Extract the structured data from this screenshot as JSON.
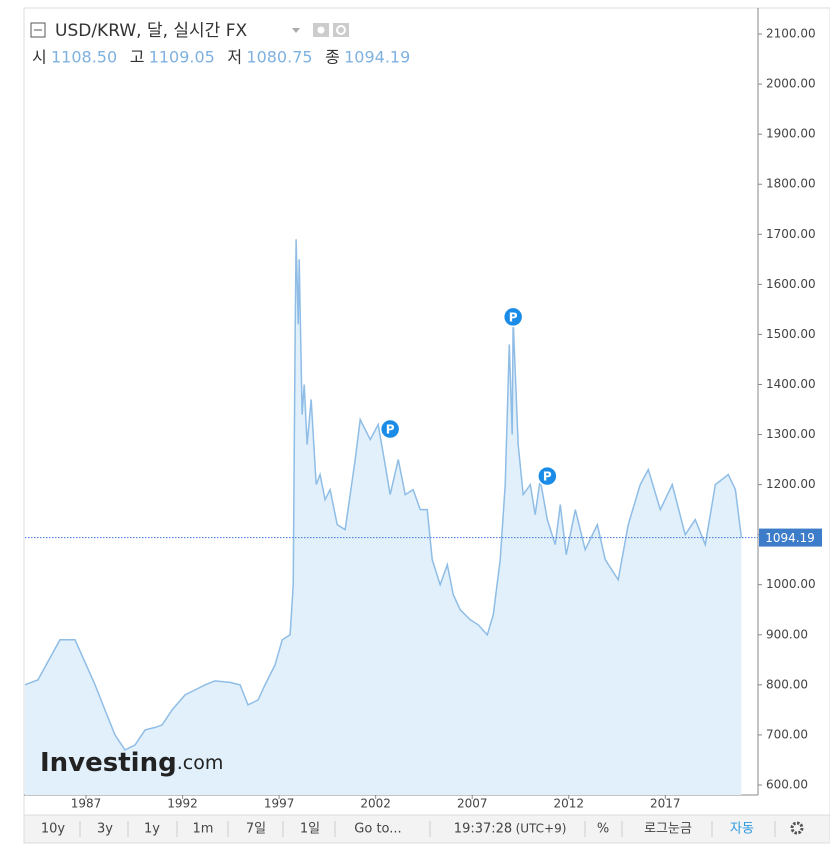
{
  "chart_data": {
    "type": "area",
    "title": "USD/KRW, 달, 실시간 FX",
    "ohlc": [
      {
        "label": "시",
        "value": "1108.50"
      },
      {
        "label": "고",
        "value": "1109.05"
      },
      {
        "label": "저",
        "value": "1080.75"
      },
      {
        "label": "종",
        "value": "1094.19"
      }
    ],
    "color": "#8fbde6",
    "fill": "#e1f0fa",
    "x": [
      1983.84,
      1984.51,
      1985.65,
      1986.43,
      1987.47,
      1987.98,
      1988.5,
      1989.02,
      1989.54,
      1990.06,
      1990.58,
      1990.94,
      1991.46,
      1992.13,
      1992.65,
      1993.17,
      1993.68,
      1994.46,
      1994.98,
      1995.39,
      1995.91,
      1996.27,
      1996.79,
      1997.16,
      1997.57,
      1997.73,
      1997.83,
      1997.88,
      1997.99,
      1998.04,
      1998.19,
      1998.3,
      1998.45,
      1998.66,
      1998.92,
      1999.12,
      1999.38,
      1999.64,
      2000.01,
      2000.42,
      2000.94,
      2001.2,
      2001.72,
      2002.13,
      2002.49,
      2002.75,
      2003.17,
      2003.53,
      2003.94,
      2004.31,
      2004.67,
      2004.93,
      2005.34,
      2005.71,
      2006.02,
      2006.38,
      2006.9,
      2007.31,
      2007.78,
      2008.09,
      2008.45,
      2008.71,
      2008.92,
      2009.07,
      2009.12,
      2009.38,
      2009.64,
      2010.01,
      2010.26,
      2010.52,
      2010.89,
      2011.3,
      2011.56,
      2011.87,
      2012.34,
      2012.85,
      2013.48,
      2013.89,
      2014.56,
      2015.08,
      2015.7,
      2016.12,
      2016.74,
      2017.36,
      2018.03,
      2018.55,
      2019.07,
      2019.59,
      2020.26,
      2020.63,
      2020.94
    ],
    "values": [
      800,
      810,
      890,
      890,
      800,
      750,
      700,
      670,
      680,
      710,
      715,
      720,
      750,
      780,
      790,
      800,
      808,
      805,
      800,
      760,
      770,
      800,
      840,
      890,
      900,
      1000,
      1500,
      1690,
      1520,
      1650,
      1340,
      1400,
      1280,
      1370,
      1200,
      1220,
      1170,
      1190,
      1120,
      1110,
      1250,
      1330,
      1290,
      1320,
      1240,
      1180,
      1250,
      1180,
      1190,
      1150,
      1150,
      1050,
      1000,
      1040,
      980,
      950,
      930,
      920,
      900,
      940,
      1050,
      1200,
      1480,
      1300,
      1530,
      1280,
      1180,
      1200,
      1140,
      1210,
      1130,
      1080,
      1160,
      1060,
      1150,
      1070,
      1120,
      1050,
      1010,
      1120,
      1200,
      1230,
      1150,
      1200,
      1100,
      1130,
      1080,
      1200,
      1220,
      1190,
      1094.19
    ],
    "markers": [
      {
        "x": 2002.75,
        "y": 1311,
        "label": "P"
      },
      {
        "x": 2009.12,
        "y": 1535,
        "label": "P"
      },
      {
        "x": 2010.89,
        "y": 1217,
        "label": "P"
      }
    ],
    "xlim": [
      1983.84,
      2021.8
    ],
    "xticks": [
      1987,
      1992,
      1997,
      2002,
      2007,
      2012,
      2017
    ],
    "ylim": [
      580,
      2152
    ],
    "yticks": [
      {
        "value": 600,
        "label": "600.00"
      },
      {
        "value": 700,
        "label": "700.00"
      },
      {
        "value": 800,
        "label": "800.00"
      },
      {
        "value": 900,
        "label": "900.00"
      },
      {
        "value": 1000,
        "label": "1000.00"
      },
      {
        "value": 1100,
        "label": "1100.00"
      },
      {
        "value": 1200,
        "label": "1200.00"
      },
      {
        "value": 1300,
        "label": "1300.00"
      },
      {
        "value": 1400,
        "label": "1400.00"
      },
      {
        "value": 1500,
        "label": "1500.00"
      },
      {
        "value": 1600,
        "label": "1600.00"
      },
      {
        "value": 1700,
        "label": "1700.00"
      },
      {
        "value": 1800,
        "label": "1800.00"
      },
      {
        "value": 1900,
        "label": "1900.00"
      },
      {
        "value": 2000,
        "label": "2000.00"
      },
      {
        "value": 2100,
        "label": "2100.00"
      }
    ],
    "grid": false
  },
  "logo": {
    "name": "Investing",
    "suffix": ".com"
  },
  "toolbar": {
    "buttons": [
      "10y",
      "3y",
      "1y",
      "1m",
      "7일",
      "1일",
      "Go to..."
    ],
    "time": "19:37:28",
    "timezone": "(UTC+9)",
    "percent": "%",
    "log": "로그눈금",
    "auto": "자동"
  }
}
